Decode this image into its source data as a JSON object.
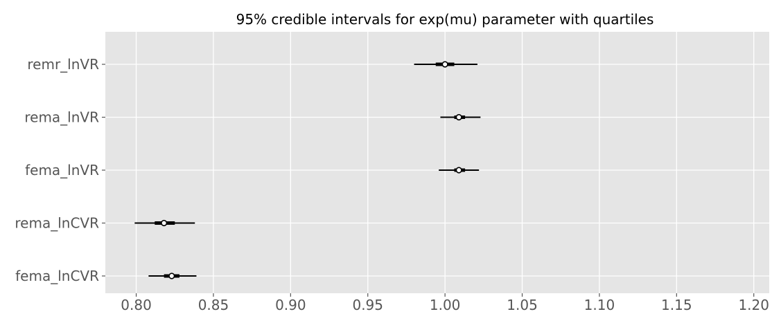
{
  "chart_data": {
    "type": "forest",
    "title": "95% credible intervals for exp(mu) parameter with quartiles",
    "xlabel": "",
    "ylabel": "",
    "xlim": [
      0.78,
      1.21
    ],
    "xticks": [
      0.8,
      0.85,
      0.9,
      0.95,
      1.0,
      1.05,
      1.1,
      1.15,
      1.2
    ],
    "grid": true,
    "background": "#e5e5e5",
    "grid_color": "#ffffff",
    "tick_label_color": "#555555",
    "mark_color": "#000000",
    "median_fill": "#ffffff",
    "categories": [
      "remr_lnVR",
      "rema_lnVR",
      "fema_lnVR",
      "rema_lnCVR",
      "fema_lnCVR"
    ],
    "series": [
      {
        "values": [
          {
            "low": 0.98,
            "q1": 0.994,
            "median": 1.0,
            "q3": 1.006,
            "high": 1.021
          },
          {
            "low": 0.997,
            "q1": 1.006,
            "median": 1.009,
            "q3": 1.013,
            "high": 1.023
          },
          {
            "low": 0.996,
            "q1": 1.006,
            "median": 1.009,
            "q3": 1.013,
            "high": 1.022
          },
          {
            "low": 0.799,
            "q1": 0.812,
            "median": 0.818,
            "q3": 0.825,
            "high": 0.838
          },
          {
            "low": 0.808,
            "q1": 0.818,
            "median": 0.823,
            "q3": 0.828,
            "high": 0.839
          }
        ]
      }
    ]
  }
}
